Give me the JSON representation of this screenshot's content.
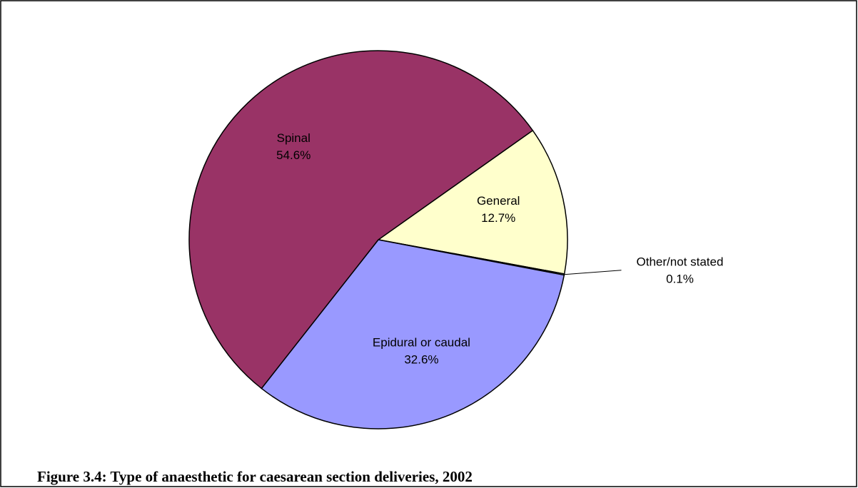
{
  "chart_data": {
    "type": "pie",
    "title": "Figure 3.4: Type of anaesthetic for caesarean section deliveries, 2002",
    "categories": [
      "General",
      "Other/not stated",
      "Epidural or caudal",
      "Spinal"
    ],
    "values": [
      12.7,
      0.1,
      32.6,
      54.6
    ],
    "value_labels": [
      "12.7%",
      "0.1%",
      "32.6%",
      "54.6%"
    ],
    "colors": [
      "#ffffcc",
      "#ccffff",
      "#9999ff",
      "#993366"
    ]
  }
}
